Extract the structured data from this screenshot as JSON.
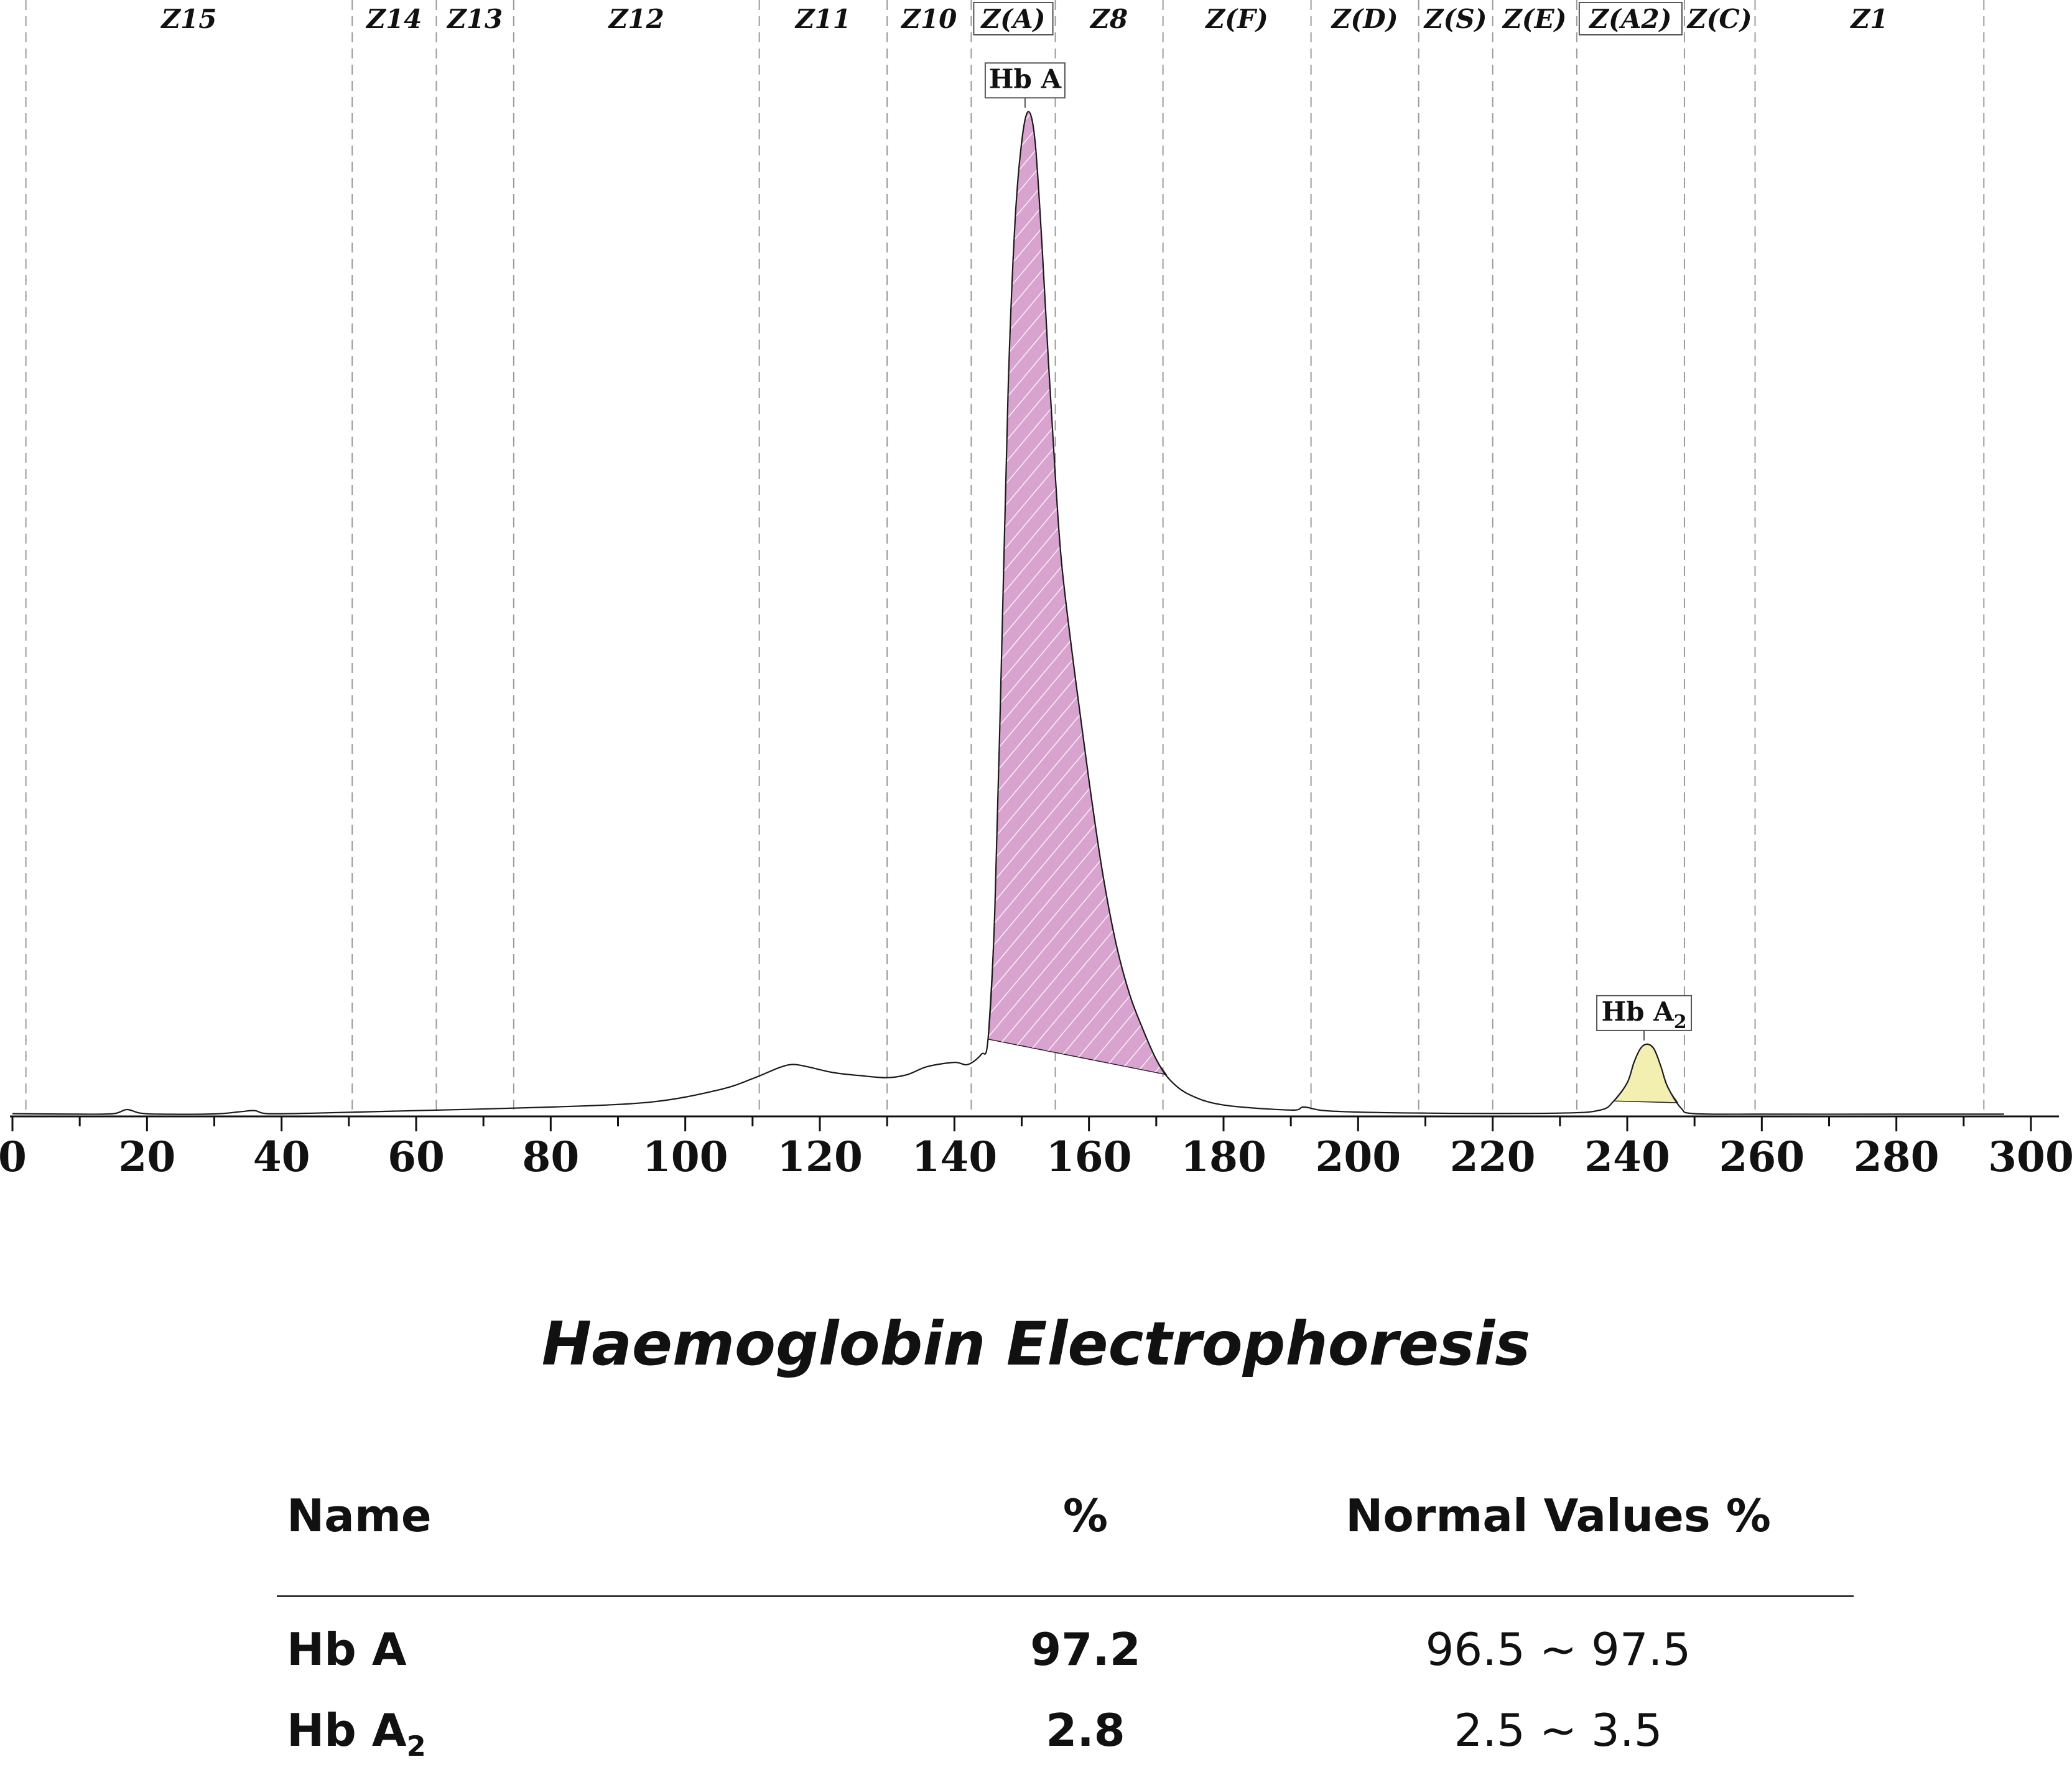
{
  "chart_data": {
    "type": "area",
    "title": "",
    "xlabel": "",
    "ylabel": "",
    "xlim": [
      0,
      300
    ],
    "ylim": [
      0,
      100
    ],
    "x_ticks": [
      0,
      20,
      40,
      60,
      80,
      100,
      120,
      140,
      160,
      180,
      200,
      220,
      240,
      260,
      280,
      300
    ],
    "grid": "vertical dashed zone boundaries",
    "zones": [
      {
        "label": "Z15",
        "from": 2,
        "to": 50.5
      },
      {
        "label": "Z14",
        "from": 50.5,
        "to": 63
      },
      {
        "label": "Z13",
        "from": 63,
        "to": 74.5
      },
      {
        "label": "Z12",
        "from": 74.5,
        "to": 111
      },
      {
        "label": "Z11",
        "from": 111,
        "to": 130
      },
      {
        "label": "Z10",
        "from": 130,
        "to": 142.5
      },
      {
        "label": "Z(A)",
        "from": 142.5,
        "to": 155,
        "boxed": true
      },
      {
        "label": "Z8",
        "from": 155,
        "to": 171
      },
      {
        "label": "Z(F)",
        "from": 171,
        "to": 193
      },
      {
        "label": "Z(D)",
        "from": 193,
        "to": 209
      },
      {
        "label": "Z(S)",
        "from": 209,
        "to": 220
      },
      {
        "label": "Z(E)",
        "from": 220,
        "to": 232.5
      },
      {
        "label": "Z(A2)",
        "from": 232.5,
        "to": 248.5,
        "boxed": true
      },
      {
        "label": "Z(C)",
        "from": 248.5,
        "to": 259
      },
      {
        "label": "Z1",
        "from": 259,
        "to": 293
      }
    ],
    "trace": {
      "x": [
        0,
        10,
        15,
        17,
        19,
        22,
        30,
        34,
        36,
        38,
        45,
        60,
        80,
        95,
        105,
        110,
        114,
        116,
        118,
        122,
        126,
        130,
        133,
        136,
        140,
        142,
        144,
        145,
        146,
        147,
        148,
        149,
        150,
        151,
        152,
        153,
        154,
        155,
        156,
        158,
        160,
        162,
        164,
        166,
        168,
        170,
        172,
        175,
        180,
        190,
        192,
        196,
        210,
        230,
        236,
        238,
        240,
        241,
        242,
        243,
        244,
        245,
        246,
        248,
        250,
        260,
        280,
        296
      ],
      "y": [
        0.15,
        0.1,
        0.15,
        0.55,
        0.2,
        0.1,
        0.12,
        0.35,
        0.45,
        0.15,
        0.2,
        0.45,
        0.8,
        1.3,
        2.5,
        3.6,
        4.7,
        5.0,
        4.8,
        4.2,
        3.9,
        3.7,
        4.0,
        4.8,
        5.2,
        5.0,
        6.0,
        7.5,
        20,
        45,
        72,
        88,
        96,
        99,
        96,
        86,
        74,
        63,
        54,
        43,
        33,
        24,
        17,
        12,
        8.5,
        5.5,
        3.5,
        2.0,
        1.0,
        0.5,
        0.8,
        0.4,
        0.2,
        0.2,
        0.5,
        1.4,
        3.2,
        5.2,
        6.6,
        7.0,
        6.5,
        4.8,
        2.8,
        0.7,
        0.15,
        0.1,
        0.1,
        0.1
      ]
    },
    "peaks": [
      {
        "name": "Hb A",
        "from": 145,
        "to": 171.5,
        "apex_x": 150.5,
        "color": "#d9a3cf",
        "hatched": true
      },
      {
        "name": "Hb A2",
        "from": 238,
        "to": 247.5,
        "apex_x": 242.5,
        "color": "#f2efb0",
        "hatched": false
      }
    ],
    "annotations": [
      "Hb A",
      "Hb A2"
    ]
  },
  "report": {
    "title": "Haemoglobin Electrophoresis",
    "columns": {
      "name": "Name",
      "percent": "%",
      "normal": "Normal Values %"
    },
    "rows": [
      {
        "name": "Hb A",
        "name_sub": "",
        "percent": "97.2",
        "normal": "96.5 ~ 97.5"
      },
      {
        "name": "Hb A",
        "name_sub": "2",
        "percent": "2.8",
        "normal": "2.5 ~  3.5"
      }
    ]
  }
}
